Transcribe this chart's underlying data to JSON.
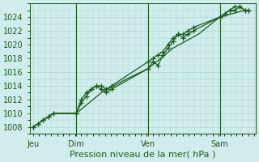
{
  "title": "",
  "xlabel": "Pression niveau de la mer( hPa )",
  "background_color": "#d0ecec",
  "plot_bg_color": "#d0ecec",
  "grid_color": "#aed4d4",
  "line_color": "#1a5c1a",
  "ylim": [
    1007,
    1026
  ],
  "yticks": [
    1008,
    1010,
    1012,
    1014,
    1016,
    1018,
    1020,
    1022,
    1024
  ],
  "day_labels": [
    "Jeu",
    "Dim",
    "Ven",
    "Sam"
  ],
  "day_positions": [
    0.0,
    0.6,
    1.6,
    2.6
  ],
  "xlim": [
    -0.05,
    3.1
  ],
  "series1_x": [
    0.0,
    0.07,
    0.14,
    0.21,
    0.28,
    0.6,
    0.67,
    0.74,
    0.81,
    0.88,
    0.95,
    1.02,
    1.09,
    1.6,
    1.67,
    1.74,
    1.81,
    1.88,
    1.95,
    2.02,
    2.09,
    2.16,
    2.23,
    2.6,
    2.67,
    2.74,
    2.81,
    2.88,
    2.95,
    3.0
  ],
  "series1_y": [
    1008.0,
    1008.5,
    1009.0,
    1009.5,
    1010.0,
    1010.0,
    1011.5,
    1012.5,
    1013.5,
    1014.0,
    1014.0,
    1013.5,
    1014.0,
    1017.5,
    1018.0,
    1018.5,
    1019.0,
    1020.0,
    1021.0,
    1021.5,
    1021.5,
    1022.0,
    1022.5,
    1024.0,
    1024.5,
    1025.0,
    1025.5,
    1025.5,
    1025.0,
    1025.0
  ],
  "series2_x": [
    0.0,
    0.07,
    0.14,
    0.21,
    0.28,
    0.6,
    0.67,
    0.74,
    0.81,
    0.88,
    0.95,
    1.02,
    1.09,
    1.6,
    1.67,
    1.74,
    1.81,
    1.88,
    1.95,
    2.02,
    2.09,
    2.16,
    2.23,
    2.6,
    2.67,
    2.74,
    2.81,
    2.88,
    2.95,
    3.0
  ],
  "series2_y": [
    1008.0,
    1008.5,
    1009.0,
    1009.5,
    1010.0,
    1010.0,
    1012.0,
    1013.0,
    1013.5,
    1014.0,
    1013.5,
    1013.0,
    1013.5,
    1016.5,
    1017.5,
    1017.0,
    1018.5,
    1019.5,
    1020.5,
    1021.5,
    1021.0,
    1021.5,
    1022.0,
    1024.0,
    1024.5,
    1025.0,
    1025.0,
    1025.5,
    1025.0,
    1025.0
  ],
  "series3_x": [
    0.0,
    0.28,
    0.6,
    0.95,
    1.3,
    1.6,
    1.95,
    2.3,
    2.6,
    2.95,
    3.0
  ],
  "series3_y": [
    1008.0,
    1010.0,
    1010.0,
    1013.0,
    1015.0,
    1016.5,
    1019.5,
    1021.5,
    1024.0,
    1025.0,
    1025.0
  ],
  "font_size_label": 8,
  "font_size_tick": 7,
  "vline_positions": [
    0.6,
    1.6,
    2.6
  ]
}
